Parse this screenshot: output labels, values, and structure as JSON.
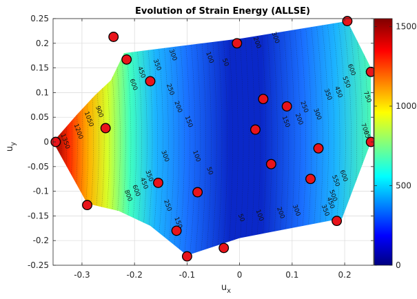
{
  "chart_data": {
    "type": "contour",
    "title": "Evolution of Strain Energy (ALLSE)",
    "xlabel": "u",
    "xlabel_sub": "x",
    "ylabel": "u",
    "ylabel_sub": "y",
    "xlim": [
      -0.355,
      0.255
    ],
    "ylim": [
      -0.25,
      0.25
    ],
    "xticks": [
      "-0.3",
      "-0.2",
      "-0.1",
      "0",
      "0.1",
      "0.2"
    ],
    "xtick_values": [
      -0.3,
      -0.2,
      -0.1,
      0,
      0.1,
      0.2
    ],
    "yticks": [
      "0.25",
      "0.2",
      "0.15",
      "0.1",
      "0.05",
      "0",
      "-0.05",
      "-0.1",
      "-0.15",
      "-0.2",
      "-0.25"
    ],
    "ytick_values": [
      0.25,
      0.2,
      0.15,
      0.1,
      0.05,
      0,
      -0.05,
      -0.1,
      -0.15,
      -0.2,
      -0.25
    ],
    "grid": true,
    "colormap": "jet",
    "colorbar": {
      "min": 0,
      "max": 1550,
      "ticks": [
        "0",
        "500",
        "1000",
        "1500"
      ],
      "tick_values": [
        0,
        500,
        1000,
        1500
      ]
    },
    "hull": [
      [
        -0.355,
        0.0
      ],
      [
        -0.31,
        0.055
      ],
      [
        -0.275,
        0.095
      ],
      [
        -0.245,
        0.125
      ],
      [
        -0.22,
        0.18
      ],
      [
        0.005,
        0.21
      ],
      [
        0.205,
        0.245
      ],
      [
        0.25,
        0.15
      ],
      [
        0.25,
        0.0
      ],
      [
        0.195,
        -0.155
      ],
      [
        0.0,
        -0.195
      ],
      [
        -0.1,
        -0.23
      ],
      [
        -0.17,
        -0.17
      ],
      [
        -0.23,
        -0.14
      ],
      [
        -0.29,
        -0.125
      ],
      [
        -0.355,
        0.0
      ]
    ],
    "points": [
      [
        -0.35,
        0.0
      ],
      [
        -0.29,
        -0.128
      ],
      [
        -0.255,
        0.028
      ],
      [
        -0.24,
        0.213
      ],
      [
        -0.215,
        0.167
      ],
      [
        -0.17,
        0.123
      ],
      [
        -0.155,
        -0.083
      ],
      [
        -0.12,
        -0.18
      ],
      [
        -0.1,
        -0.232
      ],
      [
        -0.08,
        -0.102
      ],
      [
        -0.03,
        -0.215
      ],
      [
        -0.005,
        0.2
      ],
      [
        0.03,
        0.025
      ],
      [
        0.045,
        0.087
      ],
      [
        0.06,
        -0.045
      ],
      [
        0.09,
        0.072
      ],
      [
        0.135,
        -0.075
      ],
      [
        0.15,
        -0.013
      ],
      [
        0.185,
        -0.16
      ],
      [
        0.205,
        0.245
      ],
      [
        0.25,
        0.142
      ],
      [
        0.25,
        0.0
      ]
    ],
    "contour_labels": [
      {
        "x": -0.335,
        "y": 0.0,
        "text": "1350"
      },
      {
        "x": -0.31,
        "y": 0.02,
        "text": "1200"
      },
      {
        "x": -0.29,
        "y": 0.045,
        "text": "1050"
      },
      {
        "x": -0.27,
        "y": 0.06,
        "text": "900"
      },
      {
        "x": -0.205,
        "y": 0.115,
        "text": "600"
      },
      {
        "x": -0.19,
        "y": 0.14,
        "text": "450"
      },
      {
        "x": -0.16,
        "y": 0.155,
        "text": "350"
      },
      {
        "x": -0.13,
        "y": 0.175,
        "text": "300"
      },
      {
        "x": -0.135,
        "y": 0.105,
        "text": "250"
      },
      {
        "x": -0.12,
        "y": 0.07,
        "text": "200"
      },
      {
        "x": -0.1,
        "y": 0.04,
        "text": "150"
      },
      {
        "x": -0.06,
        "y": 0.17,
        "text": "100"
      },
      {
        "x": -0.03,
        "y": 0.16,
        "text": "50"
      },
      {
        "x": -0.085,
        "y": -0.03,
        "text": "100"
      },
      {
        "x": -0.06,
        "y": -0.06,
        "text": "50"
      },
      {
        "x": -0.145,
        "y": -0.03,
        "text": "300"
      },
      {
        "x": -0.215,
        "y": -0.11,
        "text": "800"
      },
      {
        "x": -0.2,
        "y": -0.1,
        "text": "600"
      },
      {
        "x": -0.185,
        "y": -0.085,
        "text": "450"
      },
      {
        "x": -0.175,
        "y": -0.07,
        "text": "350"
      },
      {
        "x": -0.14,
        "y": -0.13,
        "text": "250"
      },
      {
        "x": -0.12,
        "y": -0.165,
        "text": "150"
      },
      {
        "x": 0.0,
        "y": -0.155,
        "text": "50"
      },
      {
        "x": 0.035,
        "y": -0.15,
        "text": "100"
      },
      {
        "x": 0.075,
        "y": -0.145,
        "text": "200"
      },
      {
        "x": 0.105,
        "y": -0.14,
        "text": "300"
      },
      {
        "x": 0.085,
        "y": 0.04,
        "text": "150"
      },
      {
        "x": 0.11,
        "y": 0.045,
        "text": "200"
      },
      {
        "x": 0.12,
        "y": 0.07,
        "text": "250"
      },
      {
        "x": 0.145,
        "y": 0.055,
        "text": "300"
      },
      {
        "x": 0.165,
        "y": 0.095,
        "text": "350"
      },
      {
        "x": 0.185,
        "y": 0.1,
        "text": "450"
      },
      {
        "x": 0.2,
        "y": 0.12,
        "text": "550"
      },
      {
        "x": 0.21,
        "y": 0.145,
        "text": "600"
      },
      {
        "x": 0.24,
        "y": 0.09,
        "text": "750"
      },
      {
        "x": 0.235,
        "y": 0.025,
        "text": "700"
      },
      {
        "x": 0.24,
        "y": 0.01,
        "text": "650"
      },
      {
        "x": 0.18,
        "y": -0.08,
        "text": "550"
      },
      {
        "x": 0.195,
        "y": -0.07,
        "text": "600"
      },
      {
        "x": 0.17,
        "y": -0.125,
        "text": "450"
      },
      {
        "x": 0.16,
        "y": -0.14,
        "text": "350"
      },
      {
        "x": 0.175,
        "y": -0.11,
        "text": "500"
      },
      {
        "x": 0.03,
        "y": 0.2,
        "text": "200"
      },
      {
        "x": 0.065,
        "y": 0.21,
        "text": "300"
      }
    ]
  }
}
